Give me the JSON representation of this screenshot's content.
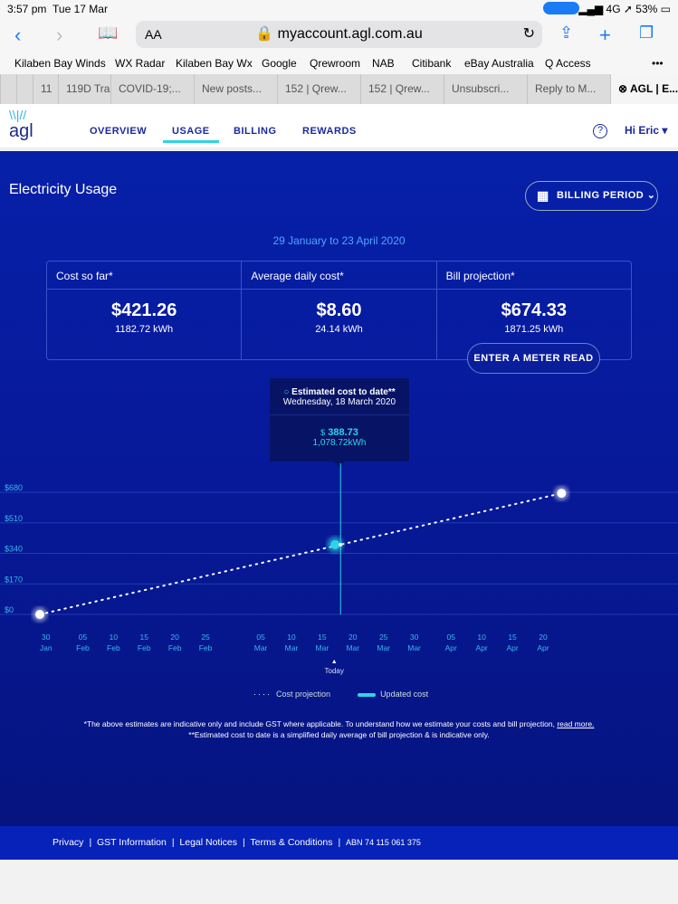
{
  "status": {
    "time": "3:57 pm",
    "date": "Tue 17 Mar",
    "network": "4G",
    "battery": "53%"
  },
  "browser": {
    "text_size": "AA",
    "url": "myaccount.agl.com.au",
    "bookmarks": [
      "Kilaben Bay Winds",
      "WX Radar",
      "Kilaben Bay Wx",
      "Google",
      "Qrewroom",
      "NAB",
      "Citibank",
      "eBay Australia",
      "Q Access"
    ],
    "tabs": [
      "11",
      "119D Tra",
      "COVID-19;...",
      "New posts...",
      "152 | Qrew...",
      "152 | Qrew...",
      "Unsubscri...",
      "Reply to M...",
      "AGL | E..."
    ]
  },
  "header": {
    "logo": "agl",
    "nav": [
      "OVERVIEW",
      "USAGE",
      "BILLING",
      "REWARDS"
    ],
    "active": "USAGE",
    "help": "?",
    "greeting": "Hi Eric"
  },
  "page": {
    "title": "Electricity Usage",
    "billing_period": "BILLING PERIOD",
    "range": "29 January to 23 April 2020",
    "cards": [
      {
        "label": "Cost so far*",
        "value": "$421.26",
        "kwh": "1182.72 kWh"
      },
      {
        "label": "Average daily cost*",
        "value": "$8.60",
        "kwh": "24.14 kWh"
      },
      {
        "label": "Bill projection*",
        "value": "$674.33",
        "kwh": "1871.25 kWh"
      }
    ],
    "meter_button": "ENTER A METER READ",
    "tooltip": {
      "title": "Estimated cost to date**",
      "date": "Wednesday, 18 March 2020",
      "currency": "$",
      "cost": "388.73",
      "kwh": "1,078.72kWh"
    },
    "legend": {
      "projection": "Cost projection",
      "updated": "Updated cost"
    },
    "note1": "*The above estimates are indicative only and include GST where applicable. To understand how we estimate your costs and bill projection,",
    "read_more": "read more.",
    "note2": "**Estimated cost to date is a simplified daily average of bill projection & is indicative only."
  },
  "chart_data": {
    "type": "line",
    "x_type": "date",
    "ylim": [
      0,
      680
    ],
    "yticks": [
      0,
      170,
      340,
      510,
      680
    ],
    "ytick_labels": [
      "$0",
      "$170",
      "$340",
      "$510",
      "$680"
    ],
    "xticks": [
      [
        "2020-01-30",
        "30",
        "Jan"
      ],
      [
        "2020-02-05",
        "05",
        "Feb"
      ],
      [
        "2020-02-10",
        "10",
        "Feb"
      ],
      [
        "2020-02-15",
        "15",
        "Feb"
      ],
      [
        "2020-02-20",
        "20",
        "Feb"
      ],
      [
        "2020-02-25",
        "25",
        "Feb"
      ],
      [
        "2020-03-05",
        "05",
        "Mar"
      ],
      [
        "2020-03-10",
        "10",
        "Mar"
      ],
      [
        "2020-03-15",
        "15",
        "Mar"
      ],
      [
        "2020-03-20",
        "20",
        "Mar"
      ],
      [
        "2020-03-25",
        "25",
        "Mar"
      ],
      [
        "2020-03-30",
        "30",
        "Mar"
      ],
      [
        "2020-04-05",
        "05",
        "Apr"
      ],
      [
        "2020-04-10",
        "10",
        "Apr"
      ],
      [
        "2020-04-15",
        "15",
        "Apr"
      ],
      [
        "2020-04-20",
        "20",
        "Apr"
      ]
    ],
    "series": [
      {
        "name": "Cost projection",
        "points": [
          [
            "2020-01-29",
            0
          ],
          [
            "2020-03-18",
            388.73
          ],
          [
            "2020-04-23",
            674.33
          ]
        ]
      }
    ],
    "today": "2020-03-18",
    "today_label": "Today",
    "colors": {
      "projection": "#ffffff",
      "updated": "#2fd4e8"
    }
  },
  "footer": {
    "links": [
      "Privacy",
      "GST Information",
      "Legal Notices",
      "Terms & Conditions"
    ],
    "abn": "ABN 74 115 061 375"
  }
}
